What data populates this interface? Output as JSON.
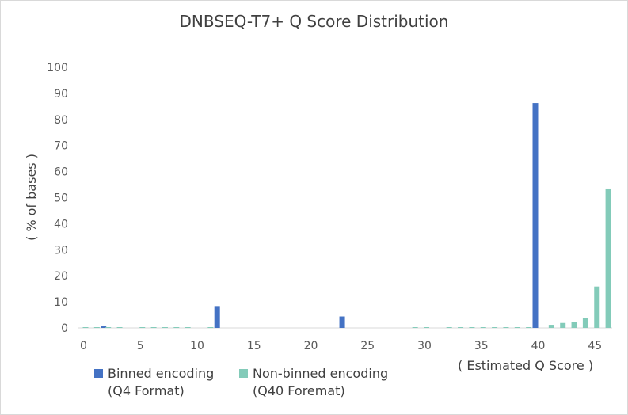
{
  "chart_data": {
    "type": "bar",
    "title": "DNBSEQ-T7+ Q Score Distribution",
    "ylabel": "( % of bases )",
    "xlabel": "( Estimated Q Score )",
    "ylim": [
      0,
      100
    ],
    "yticks": [
      0,
      10,
      20,
      30,
      40,
      50,
      60,
      70,
      80,
      90,
      100
    ],
    "xlim": [
      0,
      46
    ],
    "xticks": [
      0,
      5,
      10,
      15,
      20,
      25,
      30,
      35,
      40,
      45
    ],
    "colors": {
      "binned": "#4472c4",
      "nonbinned": "#83cbb9"
    },
    "series": [
      {
        "name": "Binned encoding (Q4 Format)",
        "key": "binned",
        "points": [
          {
            "x": 2,
            "y": 0.6
          },
          {
            "x": 12,
            "y": 8.1
          },
          {
            "x": 23,
            "y": 4.4
          },
          {
            "x": 40,
            "y": 86.3
          }
        ]
      },
      {
        "name": "Non-binned encoding (Q40 Foremat)",
        "key": "nonbinned",
        "points": [
          {
            "x": 0,
            "y": 0.3
          },
          {
            "x": 1,
            "y": 0.3
          },
          {
            "x": 2,
            "y": 0.3
          },
          {
            "x": 3,
            "y": 0.3
          },
          {
            "x": 5,
            "y": 0.3
          },
          {
            "x": 6,
            "y": 0.3
          },
          {
            "x": 7,
            "y": 0.3
          },
          {
            "x": 8,
            "y": 0.3
          },
          {
            "x": 9,
            "y": 0.3
          },
          {
            "x": 11,
            "y": 0.3
          },
          {
            "x": 29,
            "y": 0.3
          },
          {
            "x": 30,
            "y": 0.3
          },
          {
            "x": 32,
            "y": 0.3
          },
          {
            "x": 33,
            "y": 0.3
          },
          {
            "x": 34,
            "y": 0.3
          },
          {
            "x": 35,
            "y": 0.3
          },
          {
            "x": 36,
            "y": 0.3
          },
          {
            "x": 37,
            "y": 0.3
          },
          {
            "x": 38,
            "y": 0.3
          },
          {
            "x": 39,
            "y": 0.3
          },
          {
            "x": 41,
            "y": 1.2
          },
          {
            "x": 42,
            "y": 1.9
          },
          {
            "x": 43,
            "y": 2.4
          },
          {
            "x": 44,
            "y": 3.7
          },
          {
            "x": 45,
            "y": 15.9
          },
          {
            "x": 46,
            "y": 53.2
          }
        ]
      }
    ],
    "legend": {
      "position": "bottom-left",
      "items": [
        {
          "key": "binned",
          "line1": "Binned encoding",
          "line2": "(Q4 Format)"
        },
        {
          "key": "nonbinned",
          "line1": "Non-binned encoding",
          "line2": "(Q40 Foremat)"
        }
      ]
    }
  }
}
